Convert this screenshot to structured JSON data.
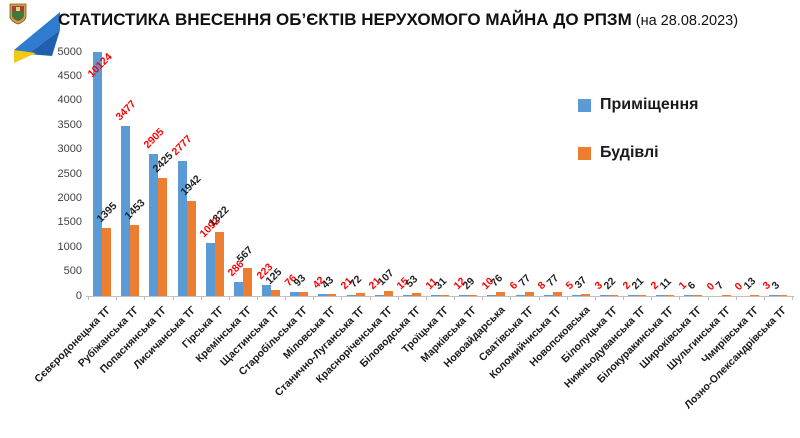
{
  "header": {
    "title_main": "СТАТИСТИКА ВНЕСЕННЯ ОБ’ЄКТІВ НЕРУХОМОГО МАЙНА ДО РПЗМ",
    "title_suffix": "(на 28.08.2023)"
  },
  "legend": [
    {
      "label": "Приміщення",
      "color": "#5B9BD5"
    },
    {
      "label": "Будівлі",
      "color": "#ED7D31"
    }
  ],
  "icons": {
    "logo": "luhansk-oblast-flag-with-coat-of-arms"
  },
  "chart_data": {
    "type": "bar",
    "title": "СТАТИСТИКА ВНЕСЕННЯ ОБ’ЄКТІВ НЕРУХОМОГО МАЙНА ДО РПЗМ (на 28.08.2023)",
    "categories": [
      "Сєвєродонецька ТГ",
      "Рубіжанська ТГ",
      "Попаснянська ТГ",
      "Лисичанська ТГ",
      "Гірська ТГ",
      "Кремінська ТГ",
      "Щастинська ТГ",
      "Старобільська ТГ",
      "Міловська ТГ",
      "Станично-Луганська ТГ",
      "Красноріченська ТГ",
      "Біловодська ТГ",
      "Троїцька ТГ",
      "Марківська ТГ",
      "Новоайдарська",
      "Сватівська ТГ",
      "Коломийчиська ТГ",
      "Новопсковська",
      "Білолуцька ТГ",
      "Нижньодуванська ТГ",
      "Білокуракинська ТГ",
      "Широківська ТГ",
      "Шульгинська ТГ",
      "Чмирівська ТГ",
      "Лозно-Олександрівська ТГ"
    ],
    "series": [
      {
        "name": "Приміщення",
        "color": "#5B9BD5",
        "label_color": "#FF0000",
        "values": [
          10124,
          3477,
          2905,
          2777,
          1092,
          286,
          223,
          76,
          42,
          21,
          21,
          15,
          11,
          12,
          10,
          6,
          8,
          5,
          3,
          2,
          2,
          1,
          0,
          0,
          3
        ]
      },
      {
        "name": "Будівлі",
        "color": "#ED7D31",
        "label_color": "#1f1f1f",
        "values": [
          1395,
          1453,
          2425,
          1942,
          1322,
          567,
          125,
          93,
          43,
          72,
          107,
          53,
          31,
          29,
          76,
          77,
          77,
          37,
          22,
          21,
          11,
          6,
          7,
          13,
          3
        ]
      }
    ],
    "xlabel": "",
    "ylabel": "",
    "ylim": [
      0,
      5000
    ],
    "ytick_step": 500,
    "grid": false,
    "legend_position": "right",
    "axis_color": "#bfbfbf"
  }
}
